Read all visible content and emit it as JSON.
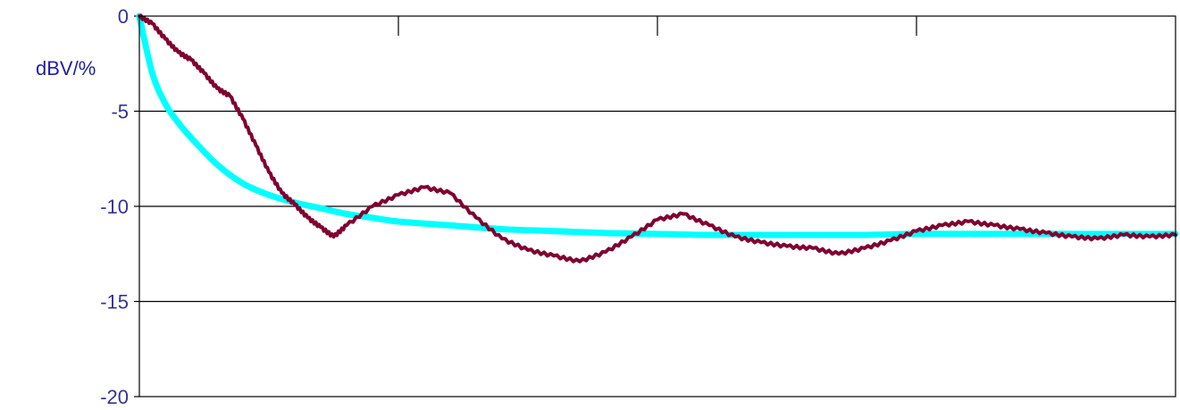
{
  "chart_data": {
    "type": "line",
    "title": "",
    "xlabel": "",
    "ylabel": "dBV/%",
    "xlim": [
      0,
      4
    ],
    "ylim": [
      -20,
      0
    ],
    "y_ticks": [
      "0",
      "-5",
      "-10",
      "-15",
      "-20"
    ],
    "x_ticks_count": 4,
    "grid": "horizontal",
    "series": [
      {
        "color": "#00ffff",
        "style": "smooth",
        "x": [
          0,
          0.05,
          0.1,
          0.15,
          0.2,
          0.3,
          0.4,
          0.5,
          0.6,
          0.7,
          0.8,
          0.9,
          1.0,
          1.2,
          1.4,
          1.6,
          1.8,
          2.0,
          2.2,
          2.5,
          2.8,
          3.0,
          3.3,
          3.6,
          4.0
        ],
        "y": [
          0,
          -3.0,
          -4.6,
          -5.6,
          -6.4,
          -7.8,
          -8.8,
          -9.4,
          -9.8,
          -10.1,
          -10.4,
          -10.6,
          -10.8,
          -11.0,
          -11.2,
          -11.3,
          -11.4,
          -11.45,
          -11.5,
          -11.5,
          -11.5,
          -11.45,
          -11.45,
          -11.45,
          -11.45
        ]
      },
      {
        "color": "#800030",
        "style": "jagged",
        "x": [
          0,
          0.05,
          0.1,
          0.15,
          0.2,
          0.25,
          0.3,
          0.35,
          0.4,
          0.45,
          0.5,
          0.55,
          0.6,
          0.65,
          0.7,
          0.75,
          0.8,
          0.9,
          1.0,
          1.1,
          1.2,
          1.3,
          1.4,
          1.5,
          1.6,
          1.7,
          1.8,
          1.9,
          2.0,
          2.1,
          2.2,
          2.3,
          2.4,
          2.5,
          2.6,
          2.7,
          2.8,
          2.9,
          3.0,
          3.1,
          3.2,
          3.3,
          3.4,
          3.5,
          3.6,
          3.7,
          3.8,
          3.9,
          4.0
        ],
        "y": [
          0,
          -0.4,
          -1.2,
          -1.9,
          -2.3,
          -3.0,
          -3.8,
          -4.2,
          -5.4,
          -6.8,
          -8.2,
          -9.3,
          -9.9,
          -10.6,
          -11.1,
          -11.6,
          -11.0,
          -10.0,
          -9.4,
          -9.0,
          -9.3,
          -10.6,
          -11.7,
          -12.3,
          -12.6,
          -12.9,
          -12.4,
          -11.6,
          -10.7,
          -10.4,
          -11.0,
          -11.6,
          -11.9,
          -12.1,
          -12.2,
          -12.5,
          -12.2,
          -11.8,
          -11.3,
          -11.0,
          -10.8,
          -11.0,
          -11.2,
          -11.4,
          -11.6,
          -11.7,
          -11.5,
          -11.6,
          -11.5
        ]
      }
    ]
  }
}
